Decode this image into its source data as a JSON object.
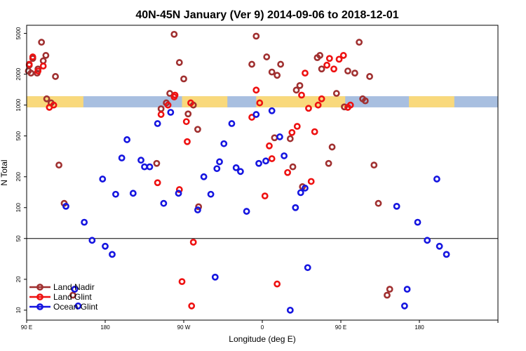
{
  "chart_data": {
    "type": "scatter",
    "title": "40N-45N January (Ver 9)   2014-09-06 to 2018-12-01",
    "xlabel": "Longitude (deg E)",
    "ylabel": "N Total",
    "y_scale": "log",
    "ylim": [
      8,
      6000
    ],
    "xlim": [
      0,
      540
    ],
    "x_unit": "degrees of longitude from 90 E",
    "x_ticks": [
      {
        "x": 0,
        "label": "90 E"
      },
      {
        "x": 90,
        "label": "180"
      },
      {
        "x": 180,
        "label": "90 W"
      },
      {
        "x": 270,
        "label": "0"
      },
      {
        "x": 360,
        "label": "90 E"
      },
      {
        "x": 450,
        "label": "180"
      }
    ],
    "y_ticks": [
      {
        "y": 10,
        "label": "10"
      },
      {
        "y": 20,
        "label": "20"
      },
      {
        "y": 50,
        "label": "50"
      },
      {
        "y": 100,
        "label": "100"
      },
      {
        "y": 200,
        "label": "200"
      },
      {
        "y": 500,
        "label": "500"
      },
      {
        "y": 1000,
        "label": "1000"
      },
      {
        "y": 2000,
        "label": "2000"
      },
      {
        "y": 5000,
        "label": "5000"
      }
    ],
    "reference_line_y": 50,
    "map_strip": {
      "y_low": 950,
      "y_high": 1220,
      "land_color": "#f9d97c",
      "ocean_color": "#a8bfe0"
    },
    "legend_position": "bottom-left",
    "series": [
      {
        "name": "Land Nadir",
        "color": "#a03030",
        "points": [
          [
            2,
            2150
          ],
          [
            3,
            2450
          ],
          [
            5,
            2050
          ],
          [
            7,
            2850
          ],
          [
            12,
            2050
          ],
          [
            13,
            2250
          ],
          [
            17,
            4100
          ],
          [
            19,
            2700
          ],
          [
            22,
            3050
          ],
          [
            23,
            1150
          ],
          [
            28,
            1050
          ],
          [
            33,
            1900
          ],
          [
            37,
            260
          ],
          [
            43,
            110
          ],
          [
            53,
            14
          ],
          [
            55,
            16
          ],
          [
            149,
            270
          ],
          [
            154,
            920
          ],
          [
            160,
            1050
          ],
          [
            164,
            1300
          ],
          [
            169,
            4900
          ],
          [
            175,
            2600
          ],
          [
            180,
            1800
          ],
          [
            185,
            820
          ],
          [
            191,
            1000
          ],
          [
            196,
            580
          ],
          [
            197,
            102
          ],
          [
            258,
            2500
          ],
          [
            263,
            4700
          ],
          [
            275,
            2950
          ],
          [
            281,
            2100
          ],
          [
            284,
            480
          ],
          [
            287,
            1950
          ],
          [
            291,
            2500
          ],
          [
            302,
            470
          ],
          [
            305,
            250
          ],
          [
            309,
            1400
          ],
          [
            313,
            1550
          ],
          [
            316,
            160
          ],
          [
            333,
            2900
          ],
          [
            336,
            3050
          ],
          [
            338,
            2250
          ],
          [
            346,
            270
          ],
          [
            350,
            390
          ],
          [
            355,
            1300
          ],
          [
            364,
            960
          ],
          [
            368,
            2150
          ],
          [
            376,
            2050
          ],
          [
            381,
            4100
          ],
          [
            385,
            1150
          ],
          [
            388,
            1100
          ],
          [
            393,
            1900
          ],
          [
            398,
            260
          ],
          [
            403,
            110
          ],
          [
            413,
            14
          ],
          [
            416,
            16
          ]
        ]
      },
      {
        "name": "Land Glint",
        "color": "#ee1111",
        "points": [
          [
            3,
            2500
          ],
          [
            7,
            2950
          ],
          [
            13,
            2150
          ],
          [
            19,
            2400
          ],
          [
            26,
            950
          ],
          [
            31,
            1000
          ],
          [
            150,
            175
          ],
          [
            154,
            810
          ],
          [
            162,
            1000
          ],
          [
            169,
            1200
          ],
          [
            170,
            1250
          ],
          [
            175,
            150
          ],
          [
            178,
            19
          ],
          [
            183,
            690
          ],
          [
            184,
            440
          ],
          [
            188,
            1050
          ],
          [
            189,
            11
          ],
          [
            191,
            46
          ],
          [
            258,
            760
          ],
          [
            263,
            1400
          ],
          [
            267,
            1050
          ],
          [
            273,
            130
          ],
          [
            278,
            400
          ],
          [
            281,
            300
          ],
          [
            287,
            18
          ],
          [
            299,
            220
          ],
          [
            304,
            540
          ],
          [
            310,
            620
          ],
          [
            315,
            1250
          ],
          [
            319,
            2050
          ],
          [
            323,
            930
          ],
          [
            326,
            180
          ],
          [
            330,
            550
          ],
          [
            334,
            1000
          ],
          [
            338,
            1150
          ],
          [
            344,
            2450
          ],
          [
            347,
            2850
          ],
          [
            352,
            2250
          ],
          [
            358,
            2800
          ],
          [
            363,
            3050
          ],
          [
            368,
            950
          ],
          [
            371,
            1000
          ]
        ]
      },
      {
        "name": "Ocean Glint",
        "color": "#1515e0",
        "points": [
          [
            45,
            103
          ],
          [
            55,
            16
          ],
          [
            59,
            11
          ],
          [
            66,
            72
          ],
          [
            75,
            48
          ],
          [
            87,
            190
          ],
          [
            90,
            42
          ],
          [
            98,
            35
          ],
          [
            102,
            135
          ],
          [
            109,
            305
          ],
          [
            115,
            460
          ],
          [
            122,
            138
          ],
          [
            131,
            290
          ],
          [
            135,
            250
          ],
          [
            141,
            250
          ],
          [
            150,
            660
          ],
          [
            157,
            110
          ],
          [
            165,
            850
          ],
          [
            174,
            138
          ],
          [
            196,
            95
          ],
          [
            203,
            200
          ],
          [
            211,
            135
          ],
          [
            216,
            21
          ],
          [
            218,
            240
          ],
          [
            221,
            280
          ],
          [
            226,
            420
          ],
          [
            235,
            660
          ],
          [
            240,
            245
          ],
          [
            245,
            225
          ],
          [
            252,
            92
          ],
          [
            263,
            810
          ],
          [
            266,
            270
          ],
          [
            274,
            285
          ],
          [
            281,
            880
          ],
          [
            290,
            490
          ],
          [
            295,
            320
          ],
          [
            302,
            10
          ],
          [
            308,
            100
          ],
          [
            314,
            140
          ],
          [
            319,
            155
          ],
          [
            322,
            26
          ],
          [
            424,
            103
          ],
          [
            433,
            11
          ],
          [
            436,
            16
          ],
          [
            448,
            72
          ],
          [
            459,
            48
          ],
          [
            470,
            190
          ],
          [
            473,
            42
          ],
          [
            481,
            35
          ]
        ]
      }
    ]
  }
}
